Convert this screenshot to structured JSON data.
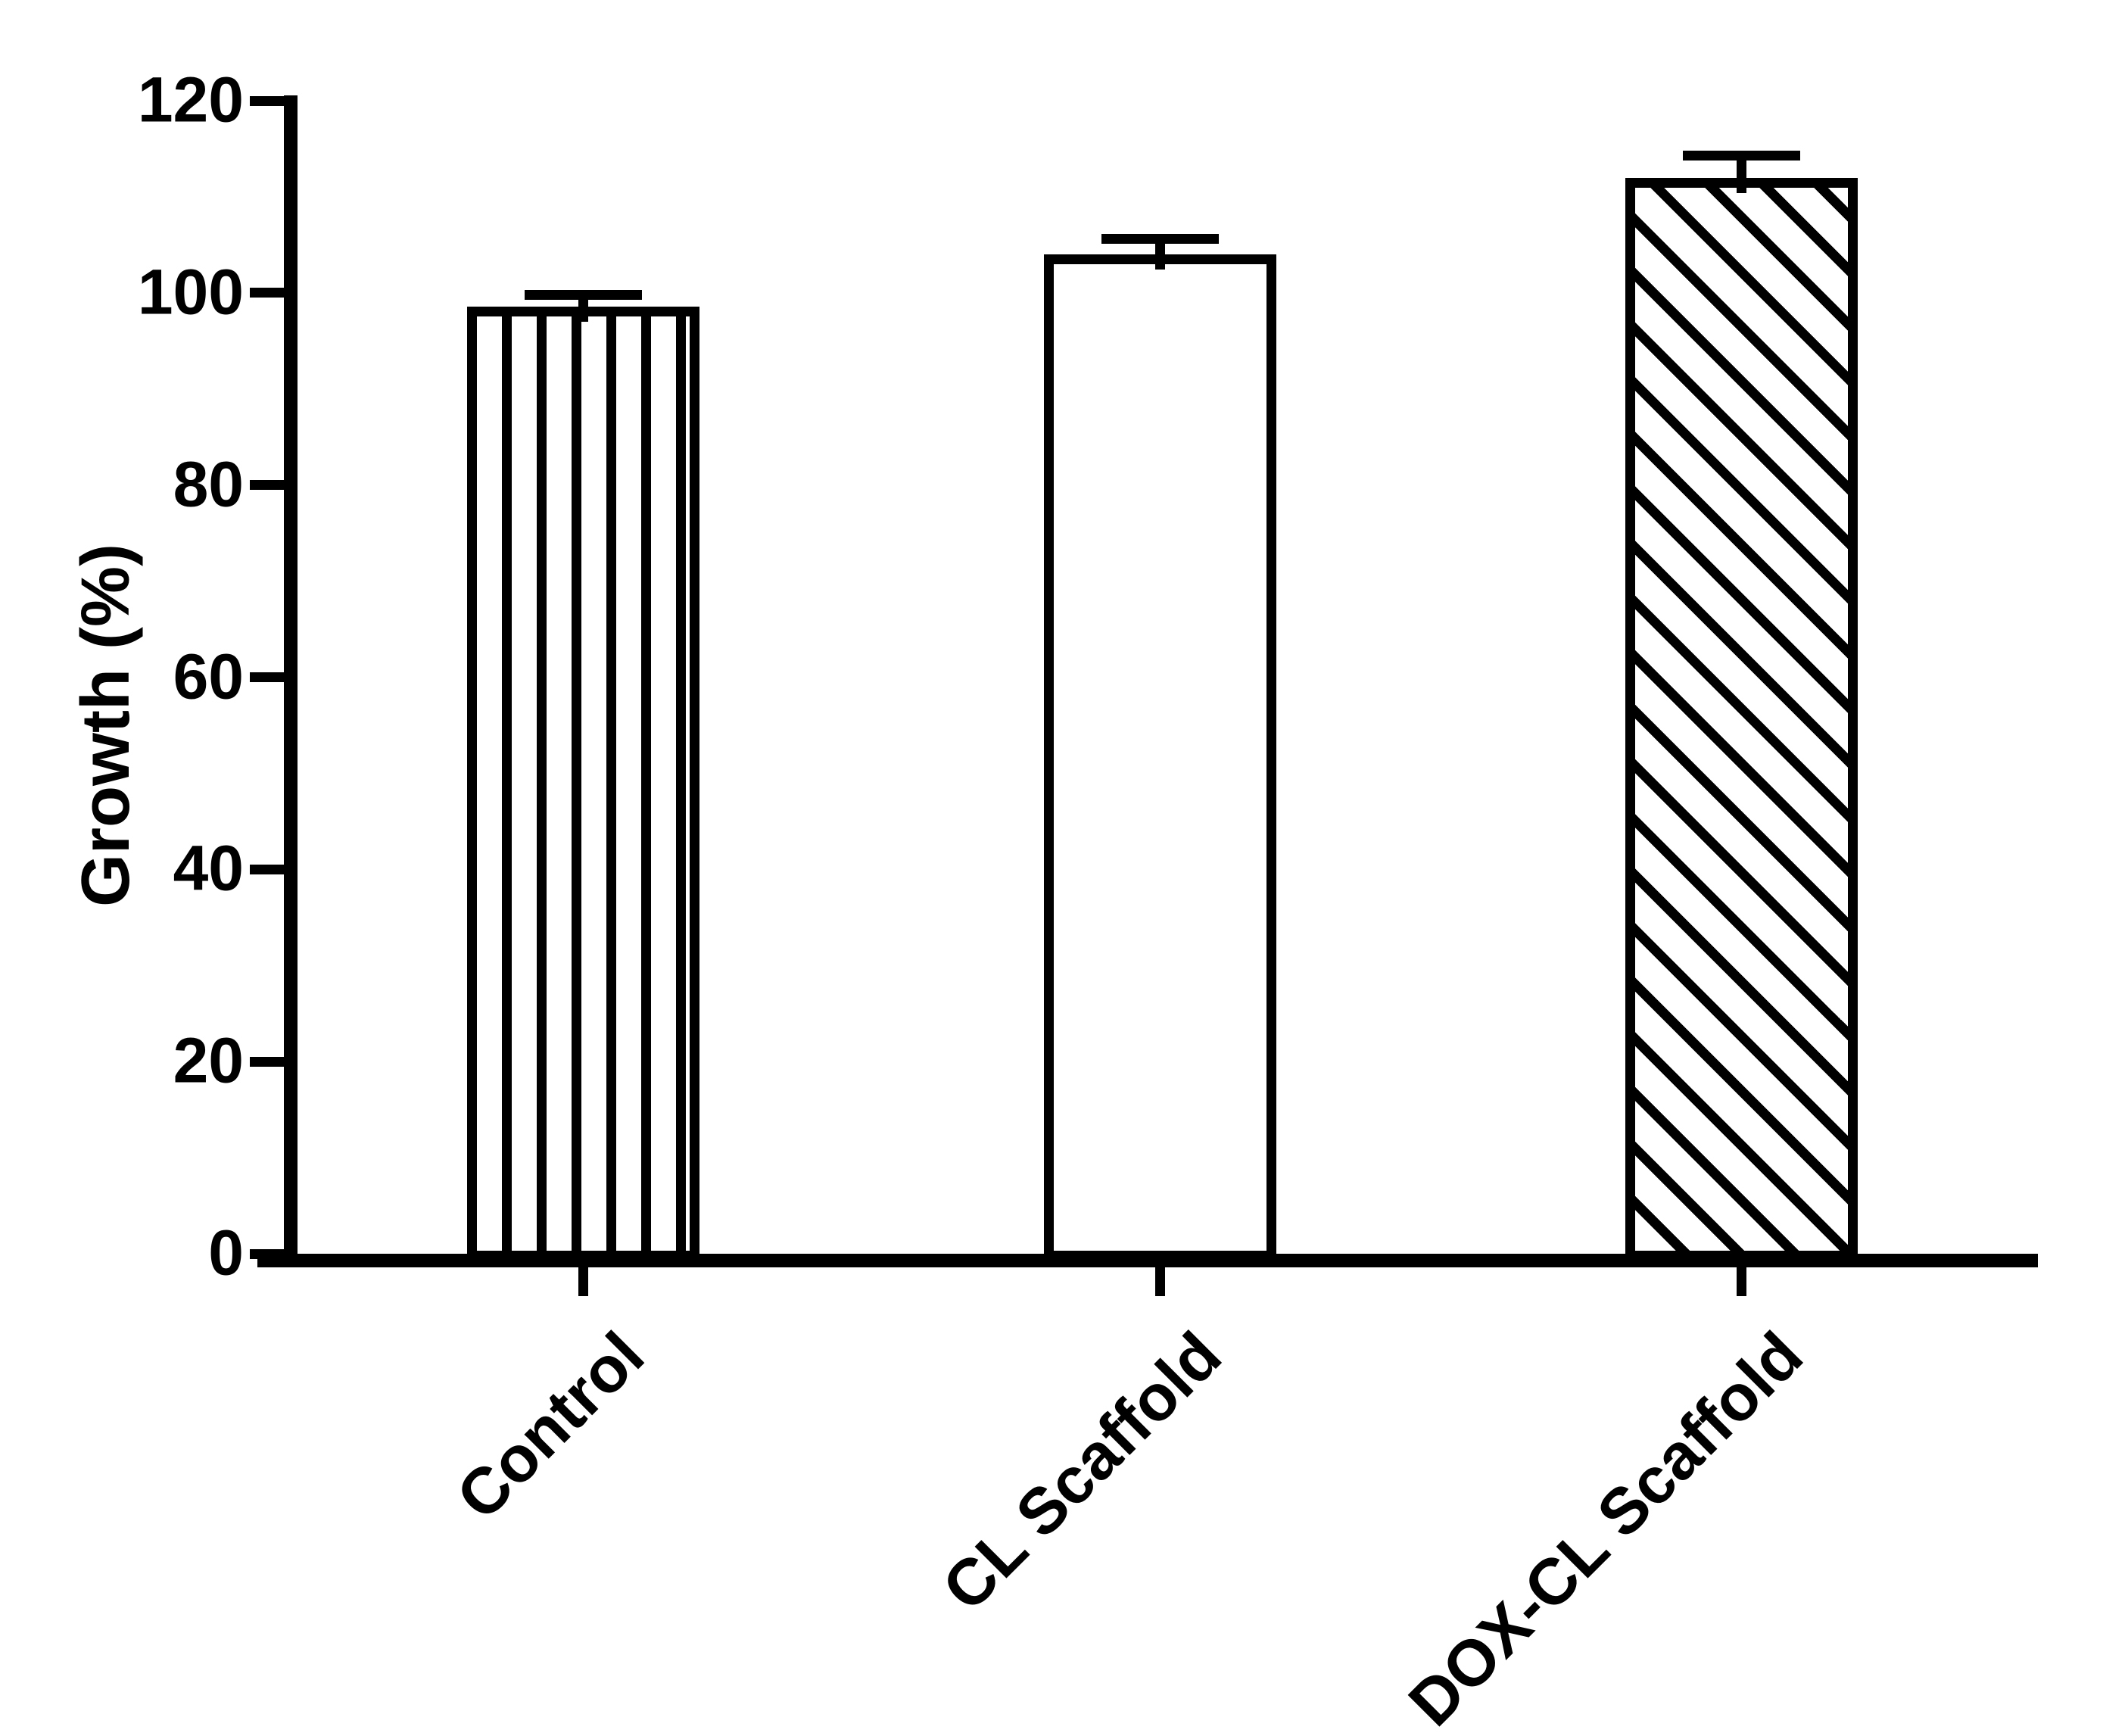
{
  "figure": {
    "background_color": "#ffffff",
    "ink_color": "#000000"
  },
  "chart_data": {
    "type": "bar",
    "title": "",
    "ylabel": "Growth (%)",
    "xlabel": "",
    "categories": [
      "Control",
      "CL Scaffold",
      "DOX-CL Scaffold"
    ],
    "series": [
      {
        "name": "Growth (%)",
        "values": [
          98.6,
          104,
          112
        ],
        "errors_plus": [
          1.2,
          1.6,
          2.3
        ]
      }
    ],
    "bar_fill_patterns": [
      "vertical-stripes",
      "solid-white",
      "diagonal-stripes-down"
    ],
    "bar_outline_color": "#000000",
    "bar_fill_base_color": "#ffffff",
    "ylim": [
      0,
      120
    ],
    "y_ticks": [
      0,
      20,
      40,
      60,
      80,
      100,
      120
    ],
    "grid": false,
    "legend_position": "none",
    "error_bars": "upper-caps-only",
    "x_tick_label_rotation_deg": 45
  }
}
